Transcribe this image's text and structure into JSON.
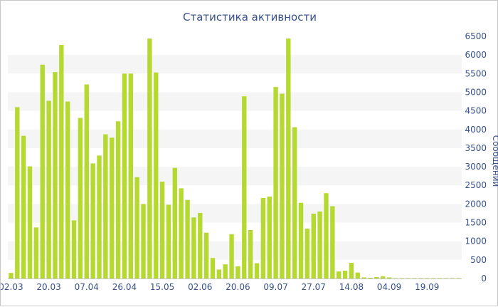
{
  "chart_data": {
    "type": "bar",
    "title": "Статистика активности",
    "xlabel": "",
    "ylabel": "Сообщений",
    "ylim": [
      0,
      6500
    ],
    "y_ticks": [
      0,
      500,
      1000,
      1500,
      2000,
      2500,
      3000,
      3500,
      4000,
      4500,
      5000,
      5500,
      6000,
      6500
    ],
    "x_tick_labels": [
      "02.03",
      "20.03",
      "07.04",
      "26.04",
      "15.05",
      "02.06",
      "20.06",
      "09.07",
      "27.07",
      "14.08",
      "04.09",
      "19.09"
    ],
    "x_tick_positions": [
      0,
      6,
      12,
      18,
      24,
      30,
      36,
      42,
      48,
      54,
      60,
      66
    ],
    "grid": "horizontal alternating bands",
    "bar_color": "#b5d930",
    "band_color": "#f5f5f5",
    "text_color": "#36508a",
    "values": [
      150,
      4600,
      3830,
      3010,
      1370,
      5740,
      4770,
      5540,
      6270,
      4750,
      1560,
      4310,
      5210,
      3090,
      3300,
      3870,
      3780,
      4220,
      5500,
      5500,
      2720,
      2000,
      6440,
      5530,
      2600,
      1980,
      2970,
      2420,
      2110,
      1640,
      1760,
      1230,
      550,
      240,
      380,
      1190,
      330,
      4890,
      1300,
      410,
      2160,
      2200,
      5140,
      4960,
      6440,
      4060,
      2030,
      1340,
      1740,
      1800,
      2290,
      1940,
      190,
      210,
      420,
      160,
      30,
      20,
      40,
      60,
      30,
      10,
      10,
      10,
      10,
      10,
      10,
      10,
      10,
      10,
      10,
      10
    ]
  }
}
